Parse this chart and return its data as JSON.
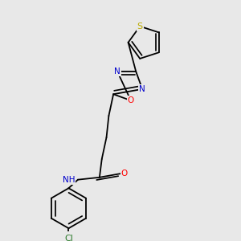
{
  "bg_color": "#e8e8e8",
  "bond_color": "#000000",
  "atom_colors": {
    "N": "#0000cc",
    "O": "#ff0000",
    "S": "#bbaa00",
    "Cl": "#2a7a2a",
    "H": "#555555"
  },
  "font_size": 7.5,
  "bond_width": 1.3
}
